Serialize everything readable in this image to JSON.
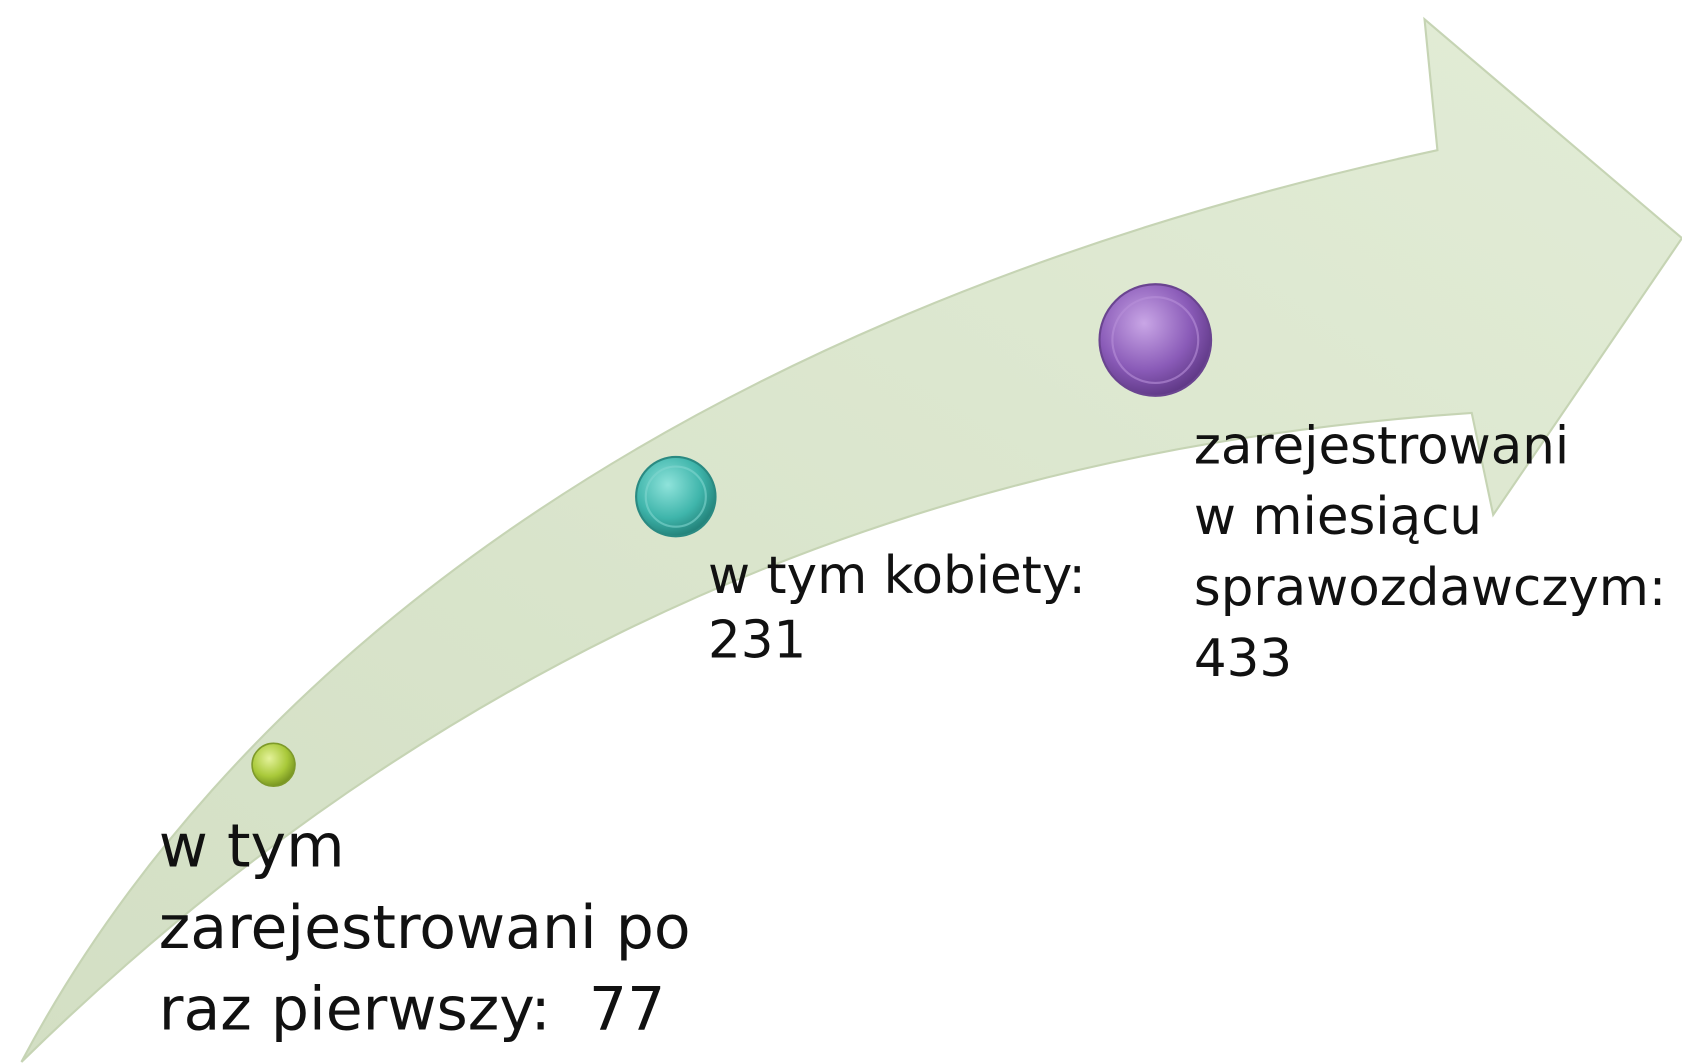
{
  "nodes": [
    {
      "lines": [
        "w tym",
        "zarejestrowani po",
        "raz pierwszy:  77"
      ]
    },
    {
      "lines": [
        "w tym kobiety:",
        "231"
      ]
    },
    {
      "lines": [
        "zarejestrowani",
        "w miesiącu",
        "sprawozdawczym:",
        "433"
      ]
    }
  ]
}
